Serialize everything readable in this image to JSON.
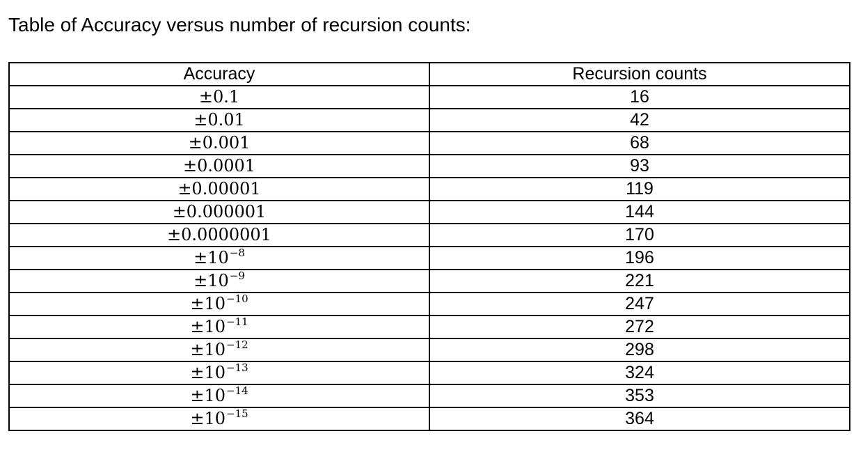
{
  "title": "Table of Accuracy versus number of recursion counts:",
  "table": {
    "headers": [
      "Accuracy",
      "Recursion counts"
    ],
    "rows": [
      {
        "sign": "±",
        "base": "0.1",
        "exp": "",
        "count": "16"
      },
      {
        "sign": "±",
        "base": "0.01",
        "exp": "",
        "count": "42"
      },
      {
        "sign": "±",
        "base": "0.001",
        "exp": "",
        "count": "68"
      },
      {
        "sign": "±",
        "base": "0.0001",
        "exp": "",
        "count": "93"
      },
      {
        "sign": "±",
        "base": "0.00001",
        "exp": "",
        "count": "119"
      },
      {
        "sign": "±",
        "base": "0.000001",
        "exp": "",
        "count": "144"
      },
      {
        "sign": "±",
        "base": "0.0000001",
        "exp": "",
        "count": "170"
      },
      {
        "sign": "±",
        "base": "10",
        "exp": "−8",
        "count": "196"
      },
      {
        "sign": "±",
        "base": "10",
        "exp": "−9",
        "count": "221"
      },
      {
        "sign": "±",
        "base": "10",
        "exp": "−10",
        "count": "247"
      },
      {
        "sign": "±",
        "base": "10",
        "exp": "−11",
        "count": "272"
      },
      {
        "sign": "±",
        "base": "10",
        "exp": "−12",
        "count": "298"
      },
      {
        "sign": "±",
        "base": "10",
        "exp": "−13",
        "count": "324"
      },
      {
        "sign": "±",
        "base": "10",
        "exp": "−14",
        "count": "353"
      },
      {
        "sign": "±",
        "base": "10",
        "exp": "−15",
        "count": "364"
      }
    ]
  }
}
